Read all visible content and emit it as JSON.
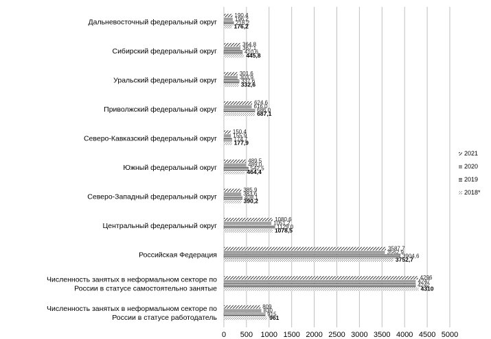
{
  "chart_data": {
    "type": "bar",
    "orientation": "horizontal",
    "categories": [
      "Дальневосточный федеральный округ",
      "Сибирский федеральный округ",
      "Уральский федеральный округ",
      "Приволжский федеральный округ",
      "Северо-Кавказский федеральный округ",
      "Южный федеральный округ",
      "Северо-Западный федеральный округ",
      "Центральный федеральный округ",
      "Российская Федерация",
      "Численность занятых в неформальном секторе по России в статусе самостоятельно занятые",
      "Численность занятых в неформальном секторе по России в статусе работодатель"
    ],
    "series": [
      {
        "name": "2021",
        "values": [
          190.4,
          364.8,
          301.6,
          624.6,
          150.4,
          489.5,
          385.9,
          1080.6,
          3587.7,
          4296,
          809
        ],
        "labels": [
          "190,4",
          "364,8",
          "301,6",
          "624,6",
          "150,4",
          "489,5",
          "385,9",
          "1080,6",
          "3587,7",
          "4296",
          "809"
        ]
      },
      {
        "name": "2020",
        "values": [
          196.2,
          367.1,
          303.9,
          616.0,
          155.9,
          489.0,
          383.6,
          1051.2,
          3562.9,
          4247,
          830
        ],
        "labels": [
          "196,2",
          "367,1",
          "303,9",
          "616,0",
          "155,9",
          "489,0",
          "383,6",
          "1051,2",
          "3562,9",
          "4247",
          "830"
        ]
      },
      {
        "name": "2019",
        "values": [
          216.2,
          410.6,
          337.6,
          686.0,
          174.7,
          542.5,
          408.1,
          1129.0,
          3904.6,
          4242,
          915
        ],
        "labels": [
          "216,2",
          "410,6",
          "337,6",
          "686,0",
          "174,7",
          "542,5",
          "408,1",
          "1129,0",
          "3904,6",
          "4242",
          "915"
        ]
      },
      {
        "name": "2018*",
        "values": [
          176.2,
          445.8,
          332.6,
          687.1,
          177.9,
          464.4,
          390.2,
          1078.5,
          3752.7,
          4310,
          961
        ],
        "labels": [
          "176,2",
          "445,8",
          "332,6",
          "687,1",
          "177,9",
          "464,4",
          "390,2",
          "1078,5",
          "3752,7",
          "4310",
          "961"
        ]
      }
    ],
    "xlim": [
      0,
      5000
    ],
    "x_ticks": [
      "0",
      "500",
      "1000",
      "1500",
      "2000",
      "2500",
      "3000",
      "3500",
      "4000",
      "4500",
      "5000"
    ],
    "x_tick_values": [
      0,
      500,
      1000,
      1500,
      2000,
      2500,
      3000,
      3500,
      4000,
      4500,
      5000
    ],
    "grid": true,
    "legend_position": "right",
    "title": "",
    "xlabel": "",
    "ylabel": "",
    "colors": {
      "series_2021": "#555555",
      "series_2020": "#9a9a9a",
      "series_2019": "#4a4a4a",
      "series_2018": "#c8c8c8"
    },
    "patterns": [
      "diagonal-stripes",
      "solid-gray",
      "horizontal-stripes",
      "dotted"
    ]
  }
}
